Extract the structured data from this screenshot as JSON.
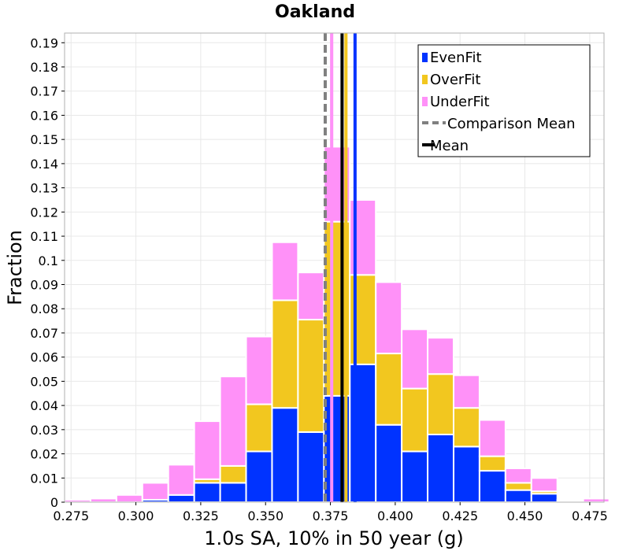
{
  "chart_data": {
    "type": "bar",
    "title": "Oakland",
    "xlabel": "1.0s SA, 10% in 50 year (g)",
    "ylabel": "Fraction",
    "xlim": [
      0.2725,
      0.4805
    ],
    "ylim": [
      0,
      0.194
    ],
    "xticks": [
      0.275,
      0.3,
      0.325,
      0.35,
      0.375,
      0.4,
      0.425,
      0.45,
      0.475
    ],
    "xtick_labels": [
      "0.275",
      "0.300",
      "0.325",
      "0.350",
      "0.375",
      "0.400",
      "0.425",
      "0.450",
      "0.475"
    ],
    "yticks": [
      0,
      0.01,
      0.02,
      0.03,
      0.04,
      0.05,
      0.06,
      0.07,
      0.08,
      0.09,
      0.1,
      0.11,
      0.12,
      0.13,
      0.14,
      0.15,
      0.16,
      0.17,
      0.18,
      0.19
    ],
    "ytick_labels": [
      "0",
      "0.01",
      "0.02",
      "0.03",
      "0.04",
      "0.05",
      "0.06",
      "0.07",
      "0.08",
      "0.09",
      "0.1",
      "0.11",
      "0.12",
      "0.13",
      "0.14",
      "0.15",
      "0.16",
      "0.17",
      "0.18",
      "0.19"
    ],
    "grid": true,
    "stacked": true,
    "bin_width": 0.01,
    "bin_centers": [
      0.2775,
      0.2875,
      0.2975,
      0.3075,
      0.3175,
      0.3275,
      0.3375,
      0.3475,
      0.3575,
      0.3675,
      0.3775,
      0.3875,
      0.3975,
      0.4075,
      0.4175,
      0.4275,
      0.4375,
      0.4475,
      0.4575,
      0.4675,
      0.4775
    ],
    "series": [
      {
        "name": "EvenFit",
        "color": "#0033ff",
        "values": [
          0,
          0,
          0,
          0.001,
          0.003,
          0.008,
          0.008,
          0.021,
          0.039,
          0.029,
          0.044,
          0.057,
          0.032,
          0.021,
          0.028,
          0.023,
          0.013,
          0.005,
          0.0035,
          0.0005,
          0
        ]
      },
      {
        "name": "OverFit",
        "color": "#f2c71f",
        "values": [
          0,
          0,
          0,
          0,
          0,
          0.0015,
          0.007,
          0.0195,
          0.0445,
          0.0465,
          0.072,
          0.037,
          0.0295,
          0.026,
          0.025,
          0.016,
          0.006,
          0.003,
          0.001,
          0,
          0
        ]
      },
      {
        "name": "UnderFit",
        "color": "#ff91f8",
        "values": [
          0.001,
          0.0015,
          0.003,
          0.007,
          0.0125,
          0.024,
          0.037,
          0.028,
          0.024,
          0.0195,
          0.031,
          0.031,
          0.0295,
          0.0245,
          0.015,
          0.0135,
          0.015,
          0.006,
          0.0055,
          0.0005,
          0.0015
        ]
      }
    ],
    "reference_lines": [
      {
        "name": "Comparison Mean",
        "x": 0.373,
        "color": "#808080",
        "style": "dashed"
      },
      {
        "name": "",
        "x": 0.3755,
        "color": "#ff91f8",
        "style": "solid"
      },
      {
        "name": "",
        "x": 0.381,
        "color": "#f2c71f",
        "style": "solid"
      },
      {
        "name": "Mean",
        "x": 0.3795,
        "color": "#000000",
        "style": "solid"
      },
      {
        "name": "",
        "x": 0.3845,
        "color": "#0033ff",
        "style": "solid"
      }
    ],
    "legend": {
      "position": "top-right",
      "entries": [
        {
          "label": "EvenFit",
          "kind": "box",
          "color": "#0033ff"
        },
        {
          "label": "OverFit",
          "kind": "box",
          "color": "#f2c71f"
        },
        {
          "label": "UnderFit",
          "kind": "box",
          "color": "#ff91f8"
        },
        {
          "label": "Comparison Mean",
          "kind": "dashed",
          "color": "#808080"
        },
        {
          "label": "Mean",
          "kind": "line",
          "color": "#000000"
        }
      ]
    }
  }
}
